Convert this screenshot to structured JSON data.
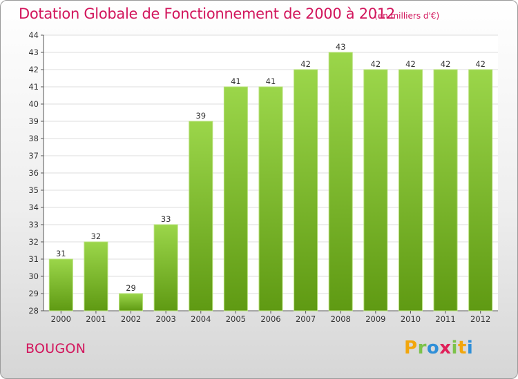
{
  "title": "Dotation Globale de Fonctionnement de 2000 à 2012",
  "subtitle": "(en milliers d'€)",
  "commune": "BOUGON",
  "logo": {
    "text": "Proxiti",
    "letters": [
      "P",
      "r",
      "o",
      "x",
      "i",
      "t",
      "i"
    ]
  },
  "colors": {
    "title": "#d2155c",
    "bar_top": "#9bd64a",
    "bar_bottom": "#5f9a13"
  },
  "chart_data": {
    "type": "bar",
    "title": "Dotation Globale de Fonctionnement de 2000 à 2012",
    "subtitle": "(en milliers d'€)",
    "xlabel": "",
    "ylabel": "",
    "categories": [
      "2000",
      "2001",
      "2002",
      "2003",
      "2004",
      "2005",
      "2006",
      "2007",
      "2008",
      "2009",
      "2010",
      "2011",
      "2012"
    ],
    "values": [
      31,
      32,
      29,
      33,
      39,
      41,
      41,
      42,
      43,
      42,
      42,
      42,
      42
    ],
    "ylim": [
      28,
      44
    ],
    "yticks": [
      28,
      29,
      30,
      31,
      32,
      33,
      34,
      35,
      36,
      37,
      38,
      39,
      40,
      41,
      42,
      43,
      44
    ],
    "grid": true,
    "legend": "none"
  }
}
